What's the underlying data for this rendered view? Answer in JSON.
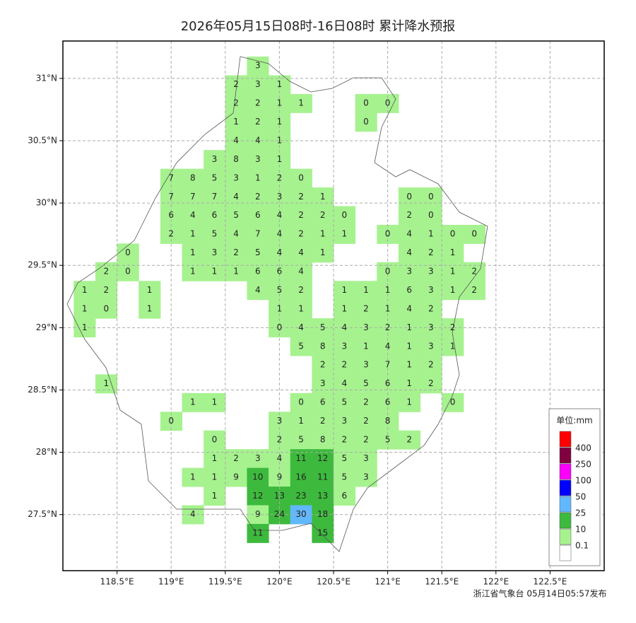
{
  "map": {
    "title": "2026年05月15日08时-16日08时 累计降水预报",
    "xlim": [
      118.0,
      123.0
    ],
    "ylim": [
      27.05,
      31.3
    ],
    "xticks": [
      {
        "value": 118.5,
        "label": "118.5°E"
      },
      {
        "value": 119,
        "label": "119°E"
      },
      {
        "value": 119.5,
        "label": "119.5°E"
      },
      {
        "value": 120,
        "label": "120°E"
      },
      {
        "value": 120.5,
        "label": "120.5°E"
      },
      {
        "value": 121,
        "label": "121°E"
      },
      {
        "value": 121.5,
        "label": "121.5°E"
      },
      {
        "value": 122,
        "label": "122°E"
      },
      {
        "value": 122.5,
        "label": "122.5°E"
      }
    ],
    "yticks": [
      {
        "value": 27.5,
        "label": "27.5°N"
      },
      {
        "value": 28,
        "label": "28°N"
      },
      {
        "value": 28.5,
        "label": "28.5°N"
      },
      {
        "value": 29,
        "label": "29°N"
      },
      {
        "value": 29.5,
        "label": "29.5°N"
      },
      {
        "value": 30,
        "label": "30°N"
      },
      {
        "value": 30.5,
        "label": "30.5°N"
      },
      {
        "value": 31,
        "label": "31°N"
      }
    ],
    "grid": true,
    "grid_values": [
      [
        null,
        null,
        null,
        null,
        null,
        null,
        null,
        null,
        3,
        null,
        null,
        null,
        null,
        null,
        null,
        null,
        null,
        null,
        null
      ],
      [
        null,
        null,
        null,
        null,
        null,
        null,
        null,
        2,
        3,
        1,
        null,
        null,
        null,
        null,
        null,
        null,
        null,
        null,
        null
      ],
      [
        null,
        null,
        null,
        null,
        null,
        null,
        null,
        2,
        2,
        1,
        1,
        null,
        null,
        0,
        0,
        null,
        null,
        null,
        null
      ],
      [
        null,
        null,
        null,
        null,
        null,
        null,
        null,
        1,
        2,
        1,
        null,
        null,
        null,
        0,
        null,
        null,
        null,
        null,
        null
      ],
      [
        null,
        null,
        null,
        null,
        null,
        null,
        null,
        4,
        4,
        1,
        null,
        null,
        null,
        null,
        null,
        null,
        null,
        null,
        null
      ],
      [
        null,
        null,
        null,
        null,
        null,
        null,
        3,
        8,
        3,
        1,
        null,
        null,
        null,
        null,
        null,
        null,
        null,
        null,
        null
      ],
      [
        null,
        null,
        null,
        null,
        7,
        8,
        5,
        3,
        1,
        2,
        0,
        null,
        null,
        null,
        null,
        null,
        null,
        null,
        null
      ],
      [
        null,
        null,
        null,
        null,
        7,
        7,
        7,
        4,
        2,
        3,
        2,
        1,
        null,
        null,
        null,
        0,
        0,
        null,
        null
      ],
      [
        null,
        null,
        null,
        null,
        6,
        4,
        6,
        5,
        6,
        4,
        2,
        2,
        0,
        null,
        null,
        2,
        0,
        null,
        null
      ],
      [
        null,
        null,
        null,
        null,
        2,
        1,
        5,
        4,
        7,
        4,
        2,
        1,
        1,
        null,
        0,
        4,
        1,
        0,
        0
      ],
      [
        null,
        null,
        0,
        null,
        null,
        1,
        3,
        2,
        5,
        4,
        4,
        1,
        null,
        null,
        null,
        4,
        2,
        1,
        null
      ],
      [
        null,
        2,
        0,
        null,
        null,
        1,
        1,
        1,
        6,
        6,
        4,
        null,
        null,
        null,
        0,
        3,
        3,
        1,
        2
      ],
      [
        1,
        2,
        null,
        1,
        null,
        null,
        null,
        null,
        4,
        5,
        2,
        null,
        1,
        1,
        1,
        6,
        3,
        1,
        2
      ],
      [
        1,
        0,
        null,
        1,
        null,
        null,
        null,
        null,
        null,
        1,
        1,
        null,
        1,
        2,
        1,
        4,
        2,
        null,
        null
      ],
      [
        1,
        null,
        null,
        null,
        null,
        null,
        null,
        null,
        null,
        0,
        4,
        5,
        4,
        3,
        2,
        1,
        3,
        2,
        null
      ],
      [
        null,
        null,
        null,
        null,
        null,
        null,
        null,
        null,
        null,
        null,
        5,
        8,
        3,
        1,
        4,
        1,
        3,
        1,
        null
      ],
      [
        null,
        null,
        null,
        null,
        null,
        null,
        null,
        null,
        null,
        null,
        null,
        2,
        2,
        3,
        7,
        1,
        2,
        null,
        null
      ],
      [
        null,
        1,
        null,
        null,
        null,
        null,
        null,
        null,
        null,
        null,
        null,
        3,
        4,
        5,
        6,
        1,
        2,
        null,
        null
      ],
      [
        null,
        null,
        null,
        null,
        null,
        1,
        1,
        null,
        null,
        null,
        0,
        6,
        5,
        2,
        6,
        1,
        null,
        0,
        null
      ],
      [
        null,
        null,
        null,
        null,
        0,
        null,
        null,
        null,
        null,
        3,
        1,
        2,
        3,
        2,
        8,
        null,
        null,
        null,
        null
      ],
      [
        null,
        null,
        null,
        null,
        null,
        null,
        0,
        null,
        null,
        2,
        5,
        8,
        2,
        2,
        5,
        2,
        null,
        null,
        null
      ],
      [
        null,
        null,
        null,
        null,
        null,
        null,
        1,
        2,
        3,
        4,
        11,
        12,
        5,
        3,
        null,
        null,
        null,
        null,
        null
      ],
      [
        null,
        null,
        null,
        null,
        null,
        1,
        1,
        9,
        10,
        9,
        16,
        11,
        5,
        3,
        null,
        null,
        null,
        null,
        null
      ],
      [
        null,
        null,
        null,
        null,
        null,
        null,
        1,
        null,
        12,
        13,
        23,
        13,
        6,
        null,
        null,
        null,
        null,
        null,
        null
      ],
      [
        null,
        null,
        null,
        null,
        null,
        4,
        null,
        null,
        9,
        24,
        30,
        18,
        null,
        null,
        null,
        null,
        null,
        null,
        null
      ],
      [
        null,
        null,
        null,
        null,
        null,
        null,
        null,
        null,
        11,
        null,
        null,
        15,
        null,
        null,
        null,
        null,
        null,
        null,
        null
      ]
    ],
    "legend": {
      "title": "单位:mm",
      "levels": [
        400,
        250,
        100,
        50,
        25,
        10,
        0.1
      ],
      "colors": [
        "#fe0000",
        "#800040",
        "#fa00fa",
        "#0000fe",
        "#61b8ff",
        "#3dba3d",
        "#a6f28f"
      ]
    },
    "footer": "浙江省气象台 05月14日05:57发布"
  }
}
